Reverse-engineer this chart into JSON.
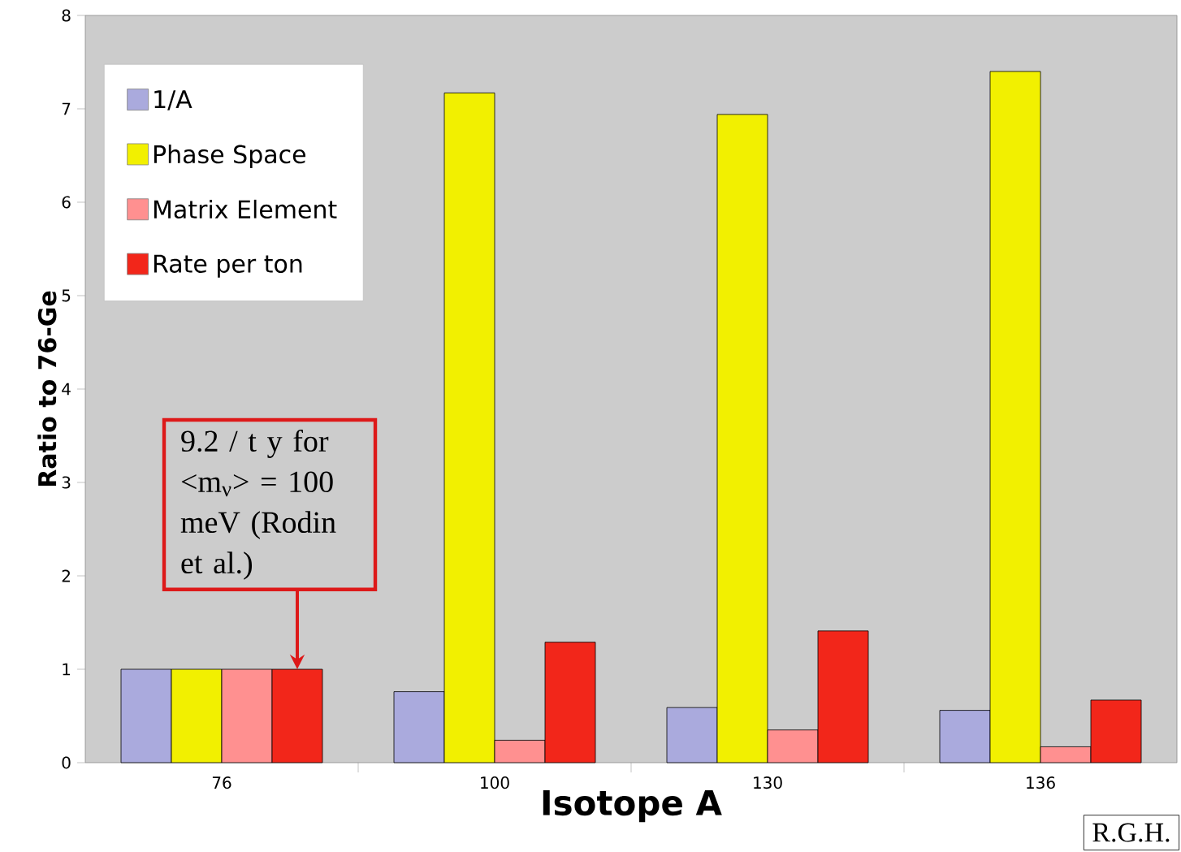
{
  "chart_data": {
    "type": "bar",
    "xlabel": "Isotope A",
    "ylabel": "Ratio to 76-Ge",
    "categories": [
      "76",
      "100",
      "130",
      "136"
    ],
    "series": [
      {
        "name": "1/A",
        "color": "#aaaadd",
        "values": [
          1,
          0.76,
          0.59,
          0.56
        ]
      },
      {
        "name": "Phase Space",
        "color": "#f2f000",
        "values": [
          1,
          7.17,
          6.94,
          7.4
        ]
      },
      {
        "name": "Matrix Element",
        "color": "#ff9090",
        "values": [
          1,
          0.24,
          0.35,
          0.17
        ]
      },
      {
        "name": "Rate per ton",
        "color": "#f2261a",
        "values": [
          1,
          1.29,
          1.41,
          0.67
        ]
      }
    ],
    "ylim": [
      0,
      8
    ],
    "yticks": [
      0,
      1,
      2,
      3,
      4,
      5,
      6,
      7,
      8
    ],
    "grid": false,
    "legend": "top left",
    "annotations": [
      {
        "text": "9.2 / t y for <m$_{ν}$> = 100 meV (Rodin et al.)",
        "x": "76",
        "y": 1
      },
      "R.G.H."
    ]
  }
}
